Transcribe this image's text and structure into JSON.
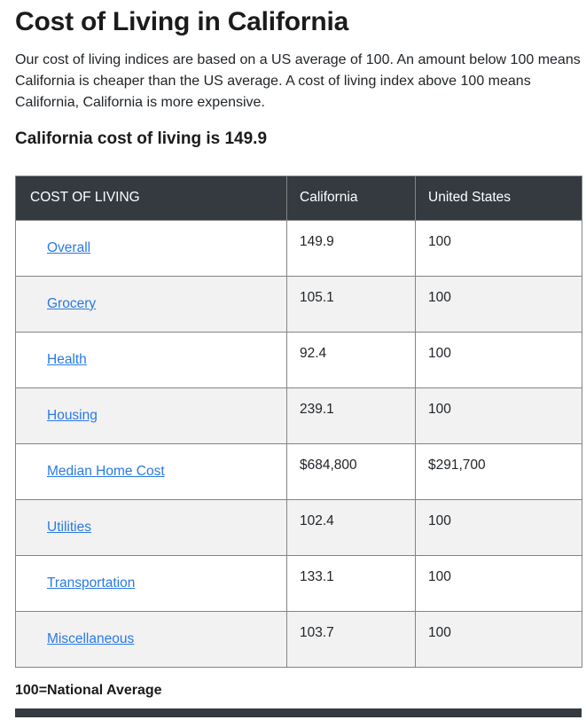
{
  "page": {
    "title": "Cost of Living in California",
    "intro": "Our cost of living indices are based on a US average of 100. An amount below 100 means California is cheaper than the US average. A cost of living index above 100 means California, California is more expensive.",
    "subtitle": "California cost of living is 149.9",
    "footnote": "100=National Average"
  },
  "table": {
    "headers": [
      "COST OF LIVING",
      "California",
      "United States"
    ],
    "rows": [
      {
        "category": "Overall",
        "california": "149.9",
        "united_states": "100"
      },
      {
        "category": "Grocery",
        "california": "105.1",
        "united_states": "100"
      },
      {
        "category": "Health",
        "california": "92.4",
        "united_states": "100"
      },
      {
        "category": "Housing",
        "california": "239.1",
        "united_states": "100"
      },
      {
        "category": "Median Home Cost",
        "california": "$684,800",
        "united_states": "$291,700"
      },
      {
        "category": "Utilities",
        "california": "102.4",
        "united_states": "100"
      },
      {
        "category": "Transportation",
        "california": "133.1",
        "united_states": "100"
      },
      {
        "category": "Miscellaneous",
        "california": "103.7",
        "united_states": "100"
      }
    ]
  },
  "chart_data": {
    "type": "table",
    "title": "Cost of Living in California",
    "categories": [
      "Overall",
      "Grocery",
      "Health",
      "Housing",
      "Median Home Cost",
      "Utilities",
      "Transportation",
      "Miscellaneous"
    ],
    "series": [
      {
        "name": "California",
        "values": [
          "149.9",
          "105.1",
          "92.4",
          "239.1",
          "$684,800",
          "102.4",
          "133.1",
          "103.7"
        ]
      },
      {
        "name": "United States",
        "values": [
          "100",
          "100",
          "100",
          "100",
          "$291,700",
          "100",
          "100",
          "100"
        ]
      }
    ]
  },
  "colors": {
    "header_bg": "#343a40",
    "header_text": "#ffffff",
    "stripe_bg": "#f2f2f2",
    "link": "#2a7ae2",
    "border": "#848484",
    "text": "#212529"
  }
}
